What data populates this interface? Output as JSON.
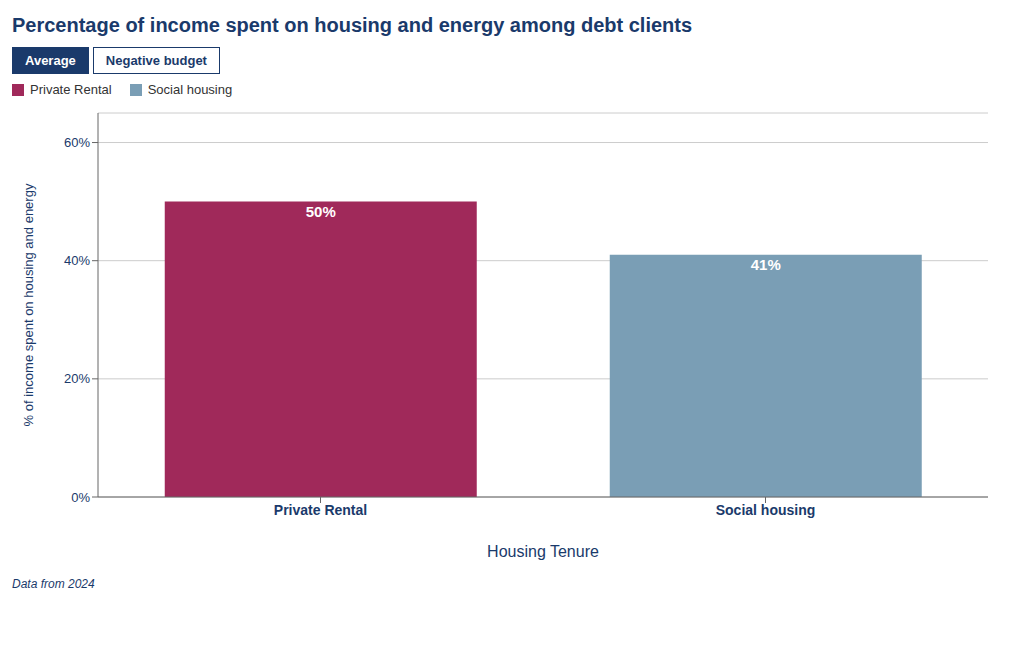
{
  "chart_data": {
    "type": "bar",
    "title": "Percentage of income spent on housing and energy among debt clients",
    "categories": [
      "Private Rental",
      "Social housing"
    ],
    "values": [
      50,
      41
    ],
    "value_labels": [
      "50%",
      "41%"
    ],
    "data_labels": true,
    "colors": [
      "#a0295a",
      "#7a9eb5"
    ],
    "xlabel": "Housing Tenure",
    "ylabel": "% of income spent on housing and energy",
    "ylim": [
      0,
      65
    ],
    "yticks": [
      {
        "value": 0,
        "label": "0%"
      },
      {
        "value": 20,
        "label": "20%"
      },
      {
        "value": 40,
        "label": "40%"
      },
      {
        "value": 60,
        "label": "60%"
      }
    ],
    "grid": true,
    "legend": "top-left",
    "annotations": [
      "Average",
      "Negative budget",
      "Data from 2024"
    ]
  }
}
